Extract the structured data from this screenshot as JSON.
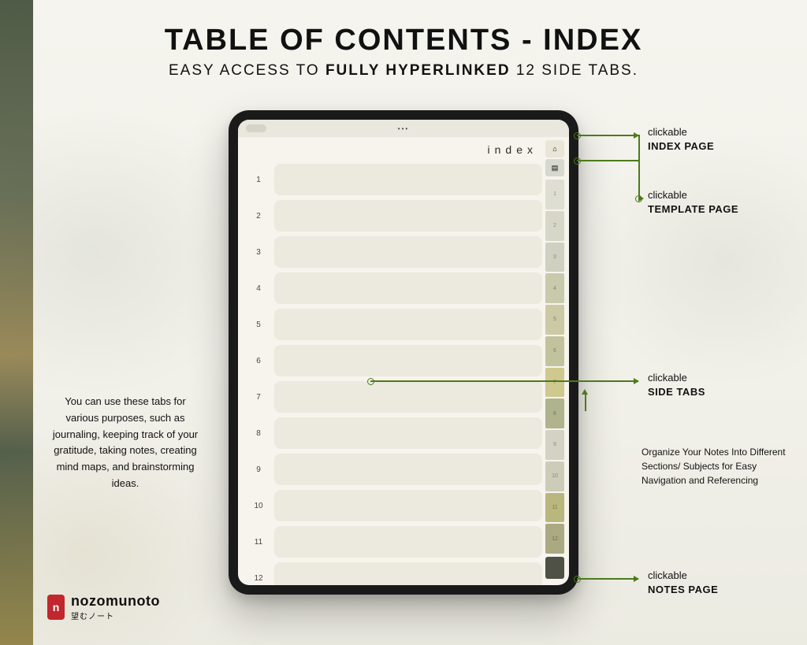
{
  "colors": {
    "accent_line": "#4b7a1c",
    "tablet_bezel": "#1a1a1a",
    "screen_bg": "#f6f4ed",
    "row_fill": "#eceade",
    "headline_text": "#111111",
    "logo_mark_bg": "#c1272d"
  },
  "typography": {
    "headline_size_pt": 29,
    "subhead_size_pt": 14,
    "callout_size_pt": 10,
    "body_size_pt": 10
  },
  "headline": {
    "title": "TABLE OF CONTENTS - INDEX",
    "sub_prefix": "EASY ACCESS TO ",
    "sub_strong": "FULLY HYPERLINKED",
    "sub_suffix": " 12 SIDE TABS."
  },
  "tablet": {
    "page_title": "index",
    "top_tab_index": {
      "label": "⌂",
      "bg": "#e9e6d8"
    },
    "top_tab_template": {
      "label": "▤",
      "bg": "#d7d9cf"
    },
    "notes_tab": {
      "label": "",
      "bg": "#4f5046"
    },
    "rows": [
      {
        "n": "1"
      },
      {
        "n": "2"
      },
      {
        "n": "3"
      },
      {
        "n": "4"
      },
      {
        "n": "5"
      },
      {
        "n": "6"
      },
      {
        "n": "7"
      },
      {
        "n": "8"
      },
      {
        "n": "9"
      },
      {
        "n": "10"
      },
      {
        "n": "11"
      },
      {
        "n": "12"
      }
    ],
    "side_tabs": [
      {
        "label": "1",
        "bg": "#dedfd2"
      },
      {
        "label": "2",
        "bg": "#d6d7c8"
      },
      {
        "label": "3",
        "bg": "#cfd0bf"
      },
      {
        "label": "4",
        "bg": "#c8caac"
      },
      {
        "label": "5",
        "bg": "#ccc9a5"
      },
      {
        "label": "6",
        "bg": "#c2c39c"
      },
      {
        "label": "7",
        "bg": "#cfc88f"
      },
      {
        "label": "8",
        "bg": "#b0b48e"
      },
      {
        "label": "9",
        "bg": "#d3d2c4"
      },
      {
        "label": "10",
        "bg": "#cdccb9"
      },
      {
        "label": "11",
        "bg": "#b9b77e"
      },
      {
        "label": "12",
        "bg": "#aaa981"
      }
    ]
  },
  "callouts": {
    "index_page": {
      "small": "clickable",
      "big": "INDEX PAGE"
    },
    "template_page": {
      "small": "clickable",
      "big": "TEMPLATE PAGE"
    },
    "side_tabs": {
      "small": "clickable",
      "big": "SIDE TABS"
    },
    "notes_page": {
      "small": "clickable",
      "big": "NOTES PAGE"
    }
  },
  "left_note": "You can use these tabs for various purposes, such as journaling, keeping track of your gratitude, taking notes, creating mind maps, and brainstorming ideas.",
  "right_note": "Organize Your Notes Into Different Sections/ Subjects for Easy Navigation and Referencing",
  "logo": {
    "mark": "n",
    "brand": "nozomunoto",
    "jp": "望むノート"
  }
}
